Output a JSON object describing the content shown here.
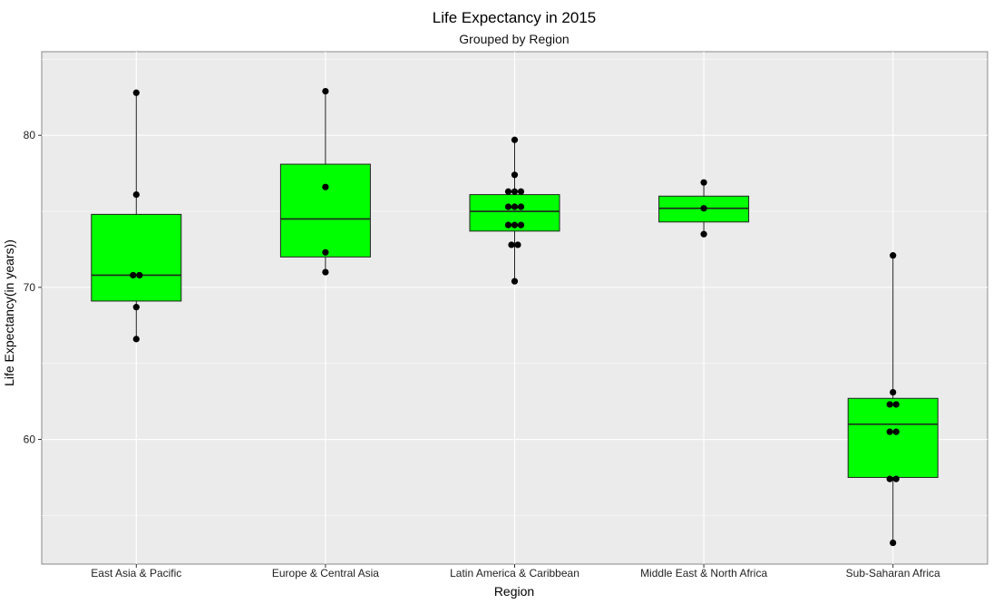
{
  "chart_data": {
    "type": "box",
    "title": "Life Expectancy in 2015",
    "subtitle": "Grouped by Region",
    "xlabel": "Region",
    "ylabel": "Life Expectancy(in years))",
    "ylim": [
      51.8,
      85.5
    ],
    "yticks": [
      60,
      70,
      80
    ],
    "grid": true,
    "colors": {
      "box_fill": "#00ff00",
      "panel_bg": "#ebebeb",
      "grid": "#ffffff",
      "point": "#000000"
    },
    "categories": [
      "East Asia & Pacific",
      "Europe & Central Asia",
      "Latin America & Caribbean",
      "Middle East & North Africa",
      "Sub-Saharan Africa"
    ],
    "boxes": [
      {
        "q1": 69.1,
        "median": 70.8,
        "q3": 74.8,
        "whisker_low": 66.6,
        "whisker_high": 82.8
      },
      {
        "q1": 72.0,
        "median": 74.5,
        "q3": 78.1,
        "whisker_low": 71.0,
        "whisker_high": 82.9
      },
      {
        "q1": 73.7,
        "median": 75.0,
        "q3": 76.1,
        "whisker_low": 70.4,
        "whisker_high": 79.7
      },
      {
        "q1": 74.3,
        "median": 75.2,
        "q3": 76.0,
        "whisker_low": 73.5,
        "whisker_high": 76.9
      },
      {
        "q1": 57.5,
        "median": 61.0,
        "q3": 62.7,
        "whisker_low": 53.2,
        "whisker_high": 72.1
      }
    ],
    "points": [
      [
        82.8,
        76.1,
        70.8,
        70.8,
        68.7,
        66.6
      ],
      [
        82.9,
        76.6,
        72.3,
        71.0
      ],
      [
        79.7,
        77.4,
        76.3,
        76.3,
        76.3,
        75.3,
        75.3,
        75.3,
        74.1,
        74.1,
        74.1,
        72.8,
        72.8,
        70.4
      ],
      [
        76.9,
        75.2,
        73.5
      ],
      [
        72.1,
        63.1,
        62.3,
        62.3,
        60.5,
        60.5,
        57.4,
        57.4,
        53.2
      ]
    ]
  }
}
